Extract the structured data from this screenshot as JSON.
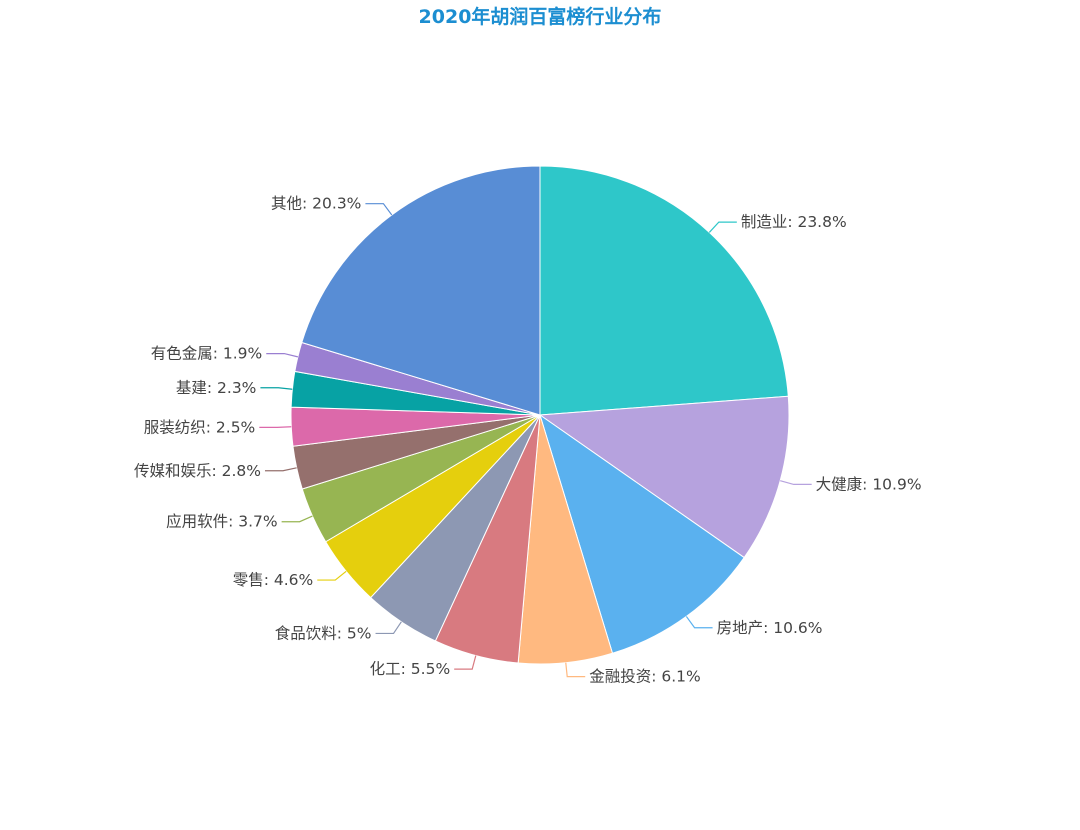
{
  "chart_data": {
    "type": "pie",
    "title": "2020年胡润百富榜行业分布",
    "start_angle_deg": 90,
    "direction": "clockwise",
    "slices": [
      {
        "name": "制造业",
        "value": 23.8,
        "label": "制造业: 23.8%",
        "color": "#2ec7c9"
      },
      {
        "name": "大健康",
        "value": 10.9,
        "label": "大健康: 10.9%",
        "color": "#b6a2de"
      },
      {
        "name": "房地产",
        "value": 10.6,
        "label": "房地产: 10.6%",
        "color": "#5ab1ef"
      },
      {
        "name": "金融投资",
        "value": 6.1,
        "label": "金融投资: 6.1%",
        "color": "#ffb980"
      },
      {
        "name": "化工",
        "value": 5.5,
        "label": "化工: 5.5%",
        "color": "#d87a80"
      },
      {
        "name": "食品饮料",
        "value": 5,
        "label": "食品饮料: 5%",
        "color": "#8d98b3"
      },
      {
        "name": "零售",
        "value": 4.6,
        "label": "零售: 4.6%",
        "color": "#e5cf0d"
      },
      {
        "name": "应用软件",
        "value": 3.7,
        "label": "应用软件: 3.7%",
        "color": "#97b552"
      },
      {
        "name": "传媒和娱乐",
        "value": 2.8,
        "label": "传媒和娱乐: 2.8%",
        "color": "#95706d"
      },
      {
        "name": "服装纺织",
        "value": 2.5,
        "label": "服装纺织: 2.5%",
        "color": "#dc69aa"
      },
      {
        "name": "基建",
        "value": 2.3,
        "label": "基建: 2.3%",
        "color": "#07a2a4"
      },
      {
        "name": "有色金属",
        "value": 1.9,
        "label": "有色金属: 1.9%",
        "color": "#9a7fd1"
      },
      {
        "name": "其他",
        "value": 20.3,
        "label": "其他: 20.3%",
        "color": "#588dd5"
      }
    ]
  }
}
